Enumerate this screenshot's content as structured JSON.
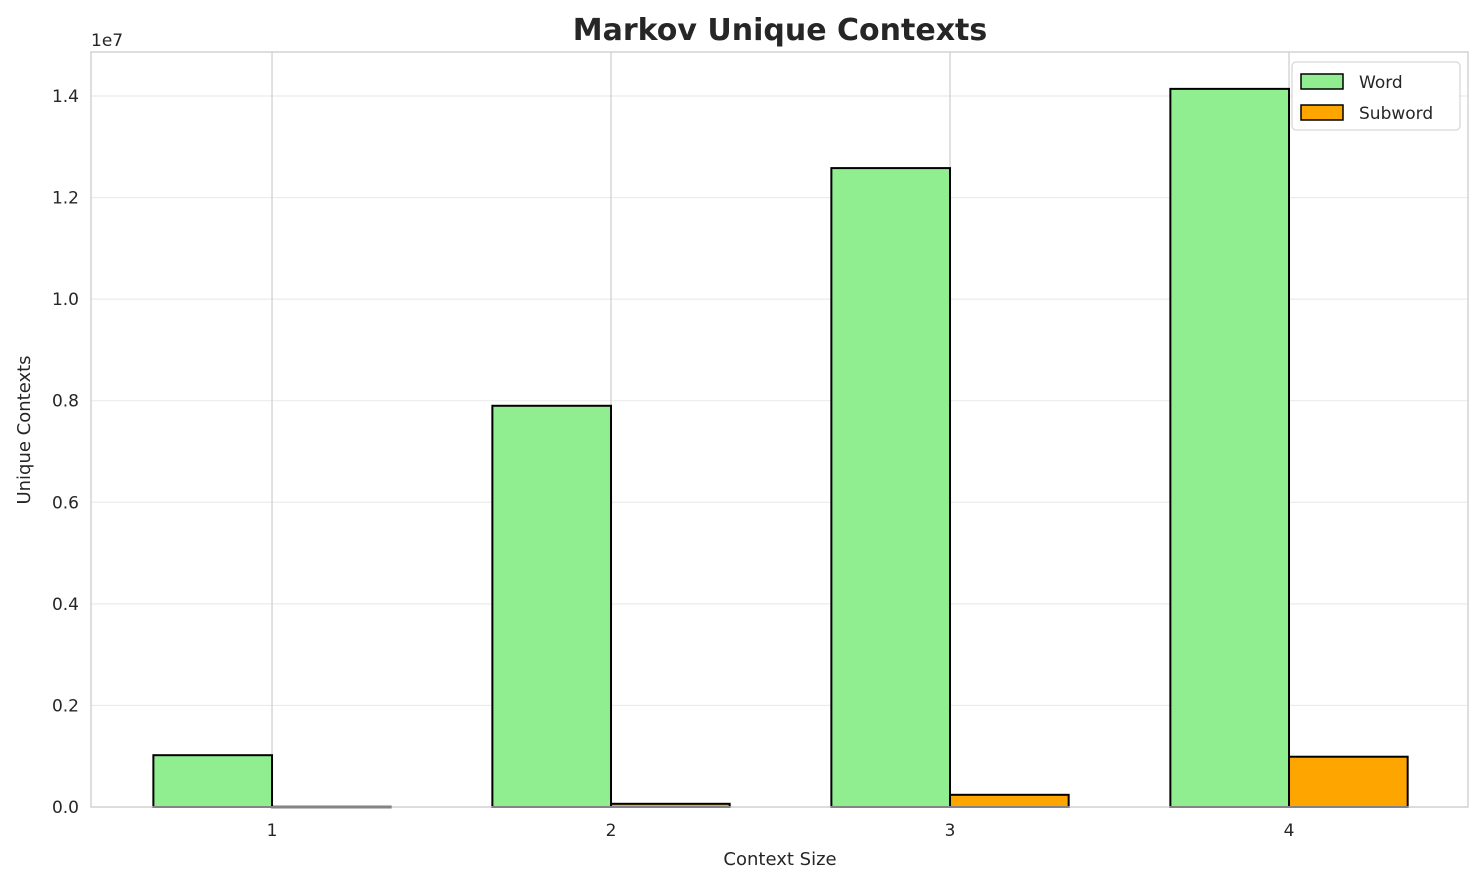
{
  "chart_data": {
    "type": "bar",
    "title": "Markov Unique Contexts",
    "xlabel": "Context Size",
    "ylabel": "Unique Contexts",
    "y_offset_label": "1e7",
    "categories": [
      "1",
      "2",
      "3",
      "4"
    ],
    "series": [
      {
        "name": "Word",
        "color": "#90ee90",
        "values": [
          1020000,
          7900000,
          12580000,
          14140000
        ]
      },
      {
        "name": "Subword",
        "color": "#ffa500",
        "values": [
          5000,
          63000,
          240000,
          990000
        ]
      }
    ],
    "yticks": [
      "0.0",
      "0.2",
      "0.4",
      "0.6",
      "0.8",
      "1.0",
      "1.2",
      "1.4"
    ],
    "ylim": [
      0,
      14866000
    ],
    "grid": true,
    "legend": "top-right"
  }
}
